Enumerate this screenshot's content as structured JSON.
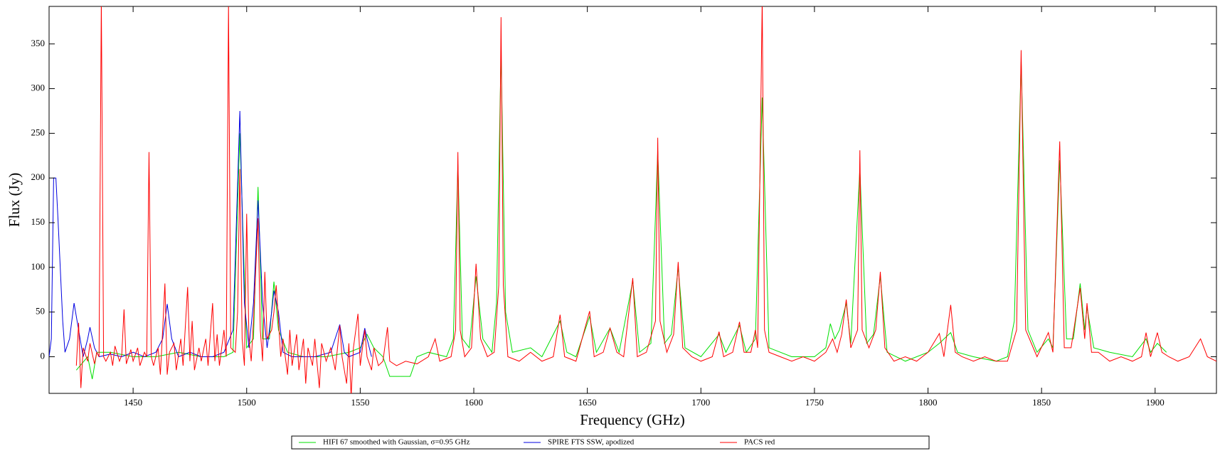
{
  "chart_data": {
    "type": "line",
    "x_label": "Frequency (GHz)",
    "y_label": "Flux (Jy)",
    "xlim": [
      1413,
      1927
    ],
    "ylim": [
      -41,
      392
    ],
    "xticks": [
      1450,
      1500,
      1550,
      1600,
      1650,
      1700,
      1750,
      1800,
      1850,
      1900
    ],
    "yticks": [
      0,
      50,
      100,
      150,
      200,
      250,
      300,
      350
    ],
    "grid": false,
    "legend": "bottom",
    "series": [
      {
        "name": "HIFI 67 smoothed with Gaussian, σ=0.95 GHz",
        "color": "#00e000",
        "x": [
          1425,
          1430,
          1432,
          1434,
          1440,
          1450,
          1460,
          1470,
          1480,
          1490,
          1494,
          1497,
          1500,
          1503,
          1505,
          1507,
          1510,
          1512,
          1514,
          1518,
          1525,
          1535,
          1545,
          1550,
          1553,
          1556,
          1560,
          1563,
          1572,
          1575,
          1580,
          1588,
          1591,
          1593,
          1595,
          1598,
          1601,
          1604,
          1608,
          1610,
          1612,
          1614,
          1617,
          1625,
          1630,
          1638,
          1641,
          1645,
          1651,
          1654,
          1660,
          1664,
          1670,
          1673,
          1678,
          1681,
          1684,
          1687,
          1690,
          1693,
          1700,
          1708,
          1711,
          1717,
          1720,
          1724,
          1727,
          1730,
          1740,
          1750,
          1755,
          1757,
          1759,
          1761,
          1764,
          1766,
          1770,
          1773,
          1776,
          1779,
          1782,
          1790,
          1800,
          1805,
          1810,
          1813,
          1820,
          1830,
          1835,
          1838,
          1841,
          1844,
          1848,
          1853,
          1855,
          1858,
          1861,
          1864,
          1867,
          1869,
          1870,
          1873,
          1880,
          1890,
          1896,
          1898,
          1901,
          1905
        ],
        "values": [
          -15,
          0,
          -25,
          5,
          5,
          0,
          0,
          5,
          0,
          0,
          5,
          250,
          10,
          20,
          190,
          20,
          20,
          84,
          30,
          5,
          0,
          0,
          5,
          10,
          25,
          10,
          0,
          -22,
          -22,
          0,
          5,
          0,
          20,
          215,
          20,
          10,
          90,
          20,
          5,
          60,
          340,
          50,
          5,
          10,
          0,
          40,
          5,
          0,
          45,
          5,
          32,
          5,
          85,
          5,
          15,
          230,
          15,
          25,
          100,
          10,
          0,
          25,
          5,
          35,
          5,
          20,
          290,
          10,
          0,
          0,
          10,
          37,
          20,
          30,
          60,
          15,
          210,
          15,
          25,
          90,
          5,
          -5,
          5,
          15,
          27,
          5,
          0,
          -5,
          0,
          40,
          330,
          30,
          5,
          20,
          10,
          220,
          20,
          20,
          82,
          30,
          55,
          10,
          5,
          0,
          20,
          5,
          15,
          5
        ]
      },
      {
        "name": "SPIRE FTS SSW, apodized",
        "color": "#0000e0",
        "x": [
          1413,
          1414,
          1415,
          1416,
          1417,
          1419,
          1420,
          1422,
          1424,
          1426,
          1428,
          1430,
          1431,
          1433,
          1435,
          1440,
          1445,
          1450,
          1455,
          1460,
          1463,
          1465,
          1467,
          1470,
          1475,
          1480,
          1485,
          1490,
          1494,
          1497,
          1499,
          1501,
          1503,
          1505,
          1507,
          1509,
          1511,
          1512,
          1514,
          1516,
          1520,
          1530,
          1537,
          1541,
          1543,
          1545,
          1550,
          1552,
          1553,
          1555
        ],
        "values": [
          0,
          20,
          200,
          200,
          150,
          40,
          5,
          20,
          60,
          30,
          0,
          20,
          33,
          10,
          0,
          3,
          0,
          5,
          0,
          5,
          20,
          59,
          20,
          0,
          5,
          0,
          0,
          5,
          30,
          275,
          60,
          10,
          60,
          175,
          60,
          10,
          50,
          74,
          50,
          5,
          0,
          0,
          5,
          36,
          5,
          0,
          5,
          32,
          20,
          0
        ]
      },
      {
        "name": "PACS red",
        "color": "#ff0000",
        "x": [
          1425,
          1426,
          1427,
          1428,
          1430,
          1431,
          1433,
          1434,
          1435,
          1436,
          1437,
          1438,
          1440,
          1441,
          1442,
          1444,
          1445,
          1446,
          1447,
          1449,
          1450,
          1452,
          1453,
          1455,
          1456,
          1457,
          1458,
          1459,
          1461,
          1462,
          1463,
          1464,
          1465,
          1466,
          1468,
          1469,
          1471,
          1472,
          1474,
          1475,
          1476,
          1477,
          1479,
          1480,
          1482,
          1483,
          1485,
          1486,
          1487,
          1488,
          1490,
          1491,
          1492,
          1493,
          1495,
          1496,
          1497,
          1498,
          1499,
          1500,
          1501,
          1502,
          1503,
          1505,
          1506,
          1507,
          1508,
          1509,
          1511,
          1512,
          1513,
          1514,
          1515,
          1516,
          1518,
          1519,
          1520,
          1522,
          1523,
          1525,
          1526,
          1527,
          1529,
          1530,
          1532,
          1533,
          1535,
          1537,
          1539,
          1541,
          1542,
          1544,
          1545,
          1546,
          1547,
          1549,
          1550,
          1552,
          1553,
          1555,
          1556,
          1558,
          1560,
          1562,
          1563,
          1566,
          1570,
          1575,
          1580,
          1583,
          1585,
          1590,
          1592,
          1593,
          1594,
          1596,
          1599,
          1601,
          1603,
          1606,
          1609,
          1611,
          1612,
          1613,
          1615,
          1620,
          1625,
          1630,
          1635,
          1638,
          1640,
          1645,
          1651,
          1653,
          1657,
          1660,
          1663,
          1666,
          1670,
          1672,
          1676,
          1680,
          1681,
          1682,
          1685,
          1688,
          1690,
          1692,
          1696,
          1700,
          1705,
          1708,
          1710,
          1714,
          1717,
          1719,
          1722,
          1724,
          1725,
          1727,
          1728,
          1730,
          1735,
          1740,
          1745,
          1750,
          1755,
          1758,
          1760,
          1762,
          1764,
          1766,
          1769,
          1770,
          1771,
          1774,
          1777,
          1779,
          1781,
          1785,
          1790,
          1795,
          1800,
          1805,
          1807,
          1810,
          1812,
          1815,
          1820,
          1825,
          1830,
          1835,
          1839,
          1841,
          1843,
          1845,
          1848,
          1853,
          1855,
          1858,
          1860,
          1863,
          1867,
          1869,
          1870,
          1872,
          1875,
          1880,
          1885,
          1890,
          1894,
          1896,
          1898,
          1901,
          1903,
          1906,
          1910,
          1915,
          1920,
          1923,
          1927
        ],
        "values": [
          -10,
          38,
          -35,
          10,
          -5,
          15,
          -8,
          5,
          0,
          400,
          0,
          -5,
          5,
          -10,
          12,
          -5,
          2,
          53,
          -8,
          8,
          -5,
          10,
          -10,
          5,
          0,
          229,
          0,
          -10,
          10,
          -20,
          30,
          82,
          -20,
          5,
          15,
          -15,
          20,
          -10,
          78,
          -5,
          40,
          -15,
          10,
          -5,
          20,
          -10,
          60,
          -5,
          25,
          -10,
          30,
          0,
          395,
          10,
          5,
          50,
          210,
          20,
          -10,
          160,
          20,
          -5,
          40,
          155,
          30,
          -5,
          95,
          20,
          30,
          50,
          80,
          40,
          0,
          20,
          -20,
          30,
          -10,
          25,
          -15,
          20,
          -30,
          10,
          -10,
          20,
          -35,
          15,
          -5,
          10,
          -15,
          35,
          0,
          -30,
          15,
          -45,
          10,
          48,
          -10,
          30,
          0,
          -15,
          10,
          -10,
          -5,
          33,
          -5,
          -10,
          -5,
          -8,
          0,
          20,
          -5,
          0,
          30,
          229,
          30,
          0,
          10,
          104,
          20,
          0,
          5,
          80,
          380,
          80,
          0,
          -5,
          5,
          -5,
          0,
          47,
          0,
          -5,
          51,
          0,
          5,
          32,
          5,
          0,
          88,
          0,
          5,
          40,
          245,
          40,
          5,
          25,
          106,
          10,
          0,
          -5,
          0,
          28,
          0,
          5,
          39,
          5,
          5,
          30,
          10,
          400,
          30,
          5,
          0,
          -5,
          0,
          -5,
          5,
          20,
          5,
          25,
          64,
          10,
          30,
          231,
          30,
          10,
          30,
          95,
          10,
          -5,
          0,
          -5,
          5,
          26,
          0,
          58,
          5,
          0,
          -5,
          0,
          -5,
          -5,
          30,
          343,
          30,
          18,
          0,
          27,
          5,
          241,
          10,
          10,
          77,
          20,
          60,
          5,
          5,
          -5,
          0,
          -5,
          0,
          27,
          0,
          27,
          5,
          0,
          -5,
          0,
          20,
          0,
          -5
        ]
      }
    ]
  }
}
